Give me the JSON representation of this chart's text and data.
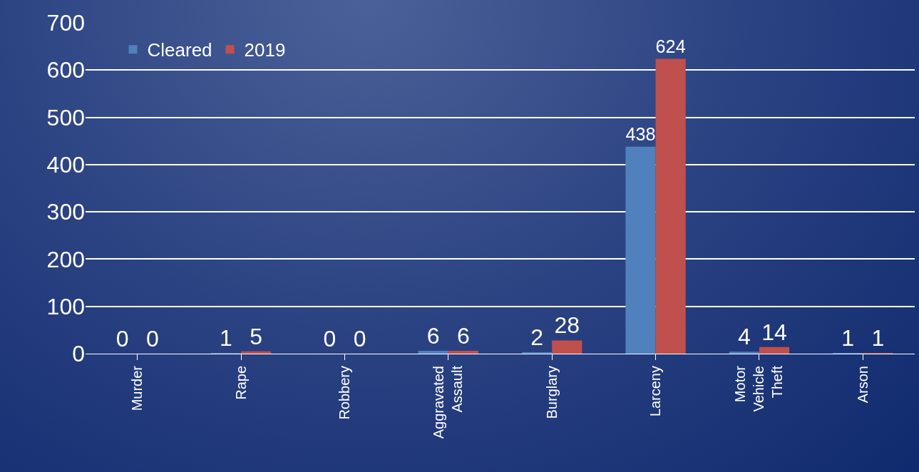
{
  "chart_data": {
    "type": "bar",
    "categories": [
      "Murder",
      "Rape",
      "Robbery",
      "Aggravated Assault",
      "Burglary",
      "Larceny",
      "Motor Vehicle Theft",
      "Arson"
    ],
    "series": [
      {
        "name": "Cleared",
        "color": "#4f81bd",
        "values": [
          0,
          1,
          0,
          6,
          2,
          438,
          4,
          1
        ]
      },
      {
        "name": "2019",
        "color": "#c0504d",
        "values": [
          0,
          5,
          0,
          6,
          28,
          624,
          14,
          1
        ]
      }
    ],
    "ylim": [
      0,
      700
    ],
    "yticks": [
      0,
      100,
      200,
      300,
      400,
      500,
      600,
      700
    ],
    "grid": "y",
    "legend": "top left",
    "data_labels": true
  }
}
